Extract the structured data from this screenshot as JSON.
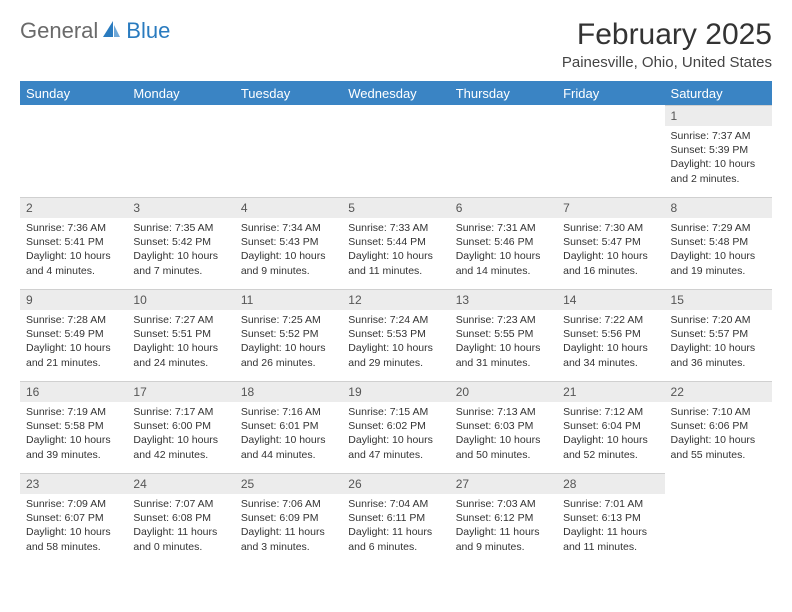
{
  "logo": {
    "text_general": "General",
    "text_blue": "Blue"
  },
  "title": "February 2025",
  "location": "Painesville, Ohio, United States",
  "colors": {
    "header_bg": "#3a84c4",
    "header_text": "#ffffff",
    "daynum_bg": "#ececec",
    "border": "#d0d0d0",
    "logo_blue": "#2a7bbf",
    "logo_gray": "#6a6a6a"
  },
  "day_headers": [
    "Sunday",
    "Monday",
    "Tuesday",
    "Wednesday",
    "Thursday",
    "Friday",
    "Saturday"
  ],
  "weeks": [
    [
      {
        "n": "",
        "empty": true
      },
      {
        "n": "",
        "empty": true
      },
      {
        "n": "",
        "empty": true
      },
      {
        "n": "",
        "empty": true
      },
      {
        "n": "",
        "empty": true
      },
      {
        "n": "",
        "empty": true
      },
      {
        "n": "1",
        "sunrise": "Sunrise: 7:37 AM",
        "sunset": "Sunset: 5:39 PM",
        "daylight1": "Daylight: 10 hours",
        "daylight2": "and 2 minutes."
      }
    ],
    [
      {
        "n": "2",
        "sunrise": "Sunrise: 7:36 AM",
        "sunset": "Sunset: 5:41 PM",
        "daylight1": "Daylight: 10 hours",
        "daylight2": "and 4 minutes."
      },
      {
        "n": "3",
        "sunrise": "Sunrise: 7:35 AM",
        "sunset": "Sunset: 5:42 PM",
        "daylight1": "Daylight: 10 hours",
        "daylight2": "and 7 minutes."
      },
      {
        "n": "4",
        "sunrise": "Sunrise: 7:34 AM",
        "sunset": "Sunset: 5:43 PM",
        "daylight1": "Daylight: 10 hours",
        "daylight2": "and 9 minutes."
      },
      {
        "n": "5",
        "sunrise": "Sunrise: 7:33 AM",
        "sunset": "Sunset: 5:44 PM",
        "daylight1": "Daylight: 10 hours",
        "daylight2": "and 11 minutes."
      },
      {
        "n": "6",
        "sunrise": "Sunrise: 7:31 AM",
        "sunset": "Sunset: 5:46 PM",
        "daylight1": "Daylight: 10 hours",
        "daylight2": "and 14 minutes."
      },
      {
        "n": "7",
        "sunrise": "Sunrise: 7:30 AM",
        "sunset": "Sunset: 5:47 PM",
        "daylight1": "Daylight: 10 hours",
        "daylight2": "and 16 minutes."
      },
      {
        "n": "8",
        "sunrise": "Sunrise: 7:29 AM",
        "sunset": "Sunset: 5:48 PM",
        "daylight1": "Daylight: 10 hours",
        "daylight2": "and 19 minutes."
      }
    ],
    [
      {
        "n": "9",
        "sunrise": "Sunrise: 7:28 AM",
        "sunset": "Sunset: 5:49 PM",
        "daylight1": "Daylight: 10 hours",
        "daylight2": "and 21 minutes."
      },
      {
        "n": "10",
        "sunrise": "Sunrise: 7:27 AM",
        "sunset": "Sunset: 5:51 PM",
        "daylight1": "Daylight: 10 hours",
        "daylight2": "and 24 minutes."
      },
      {
        "n": "11",
        "sunrise": "Sunrise: 7:25 AM",
        "sunset": "Sunset: 5:52 PM",
        "daylight1": "Daylight: 10 hours",
        "daylight2": "and 26 minutes."
      },
      {
        "n": "12",
        "sunrise": "Sunrise: 7:24 AM",
        "sunset": "Sunset: 5:53 PM",
        "daylight1": "Daylight: 10 hours",
        "daylight2": "and 29 minutes."
      },
      {
        "n": "13",
        "sunrise": "Sunrise: 7:23 AM",
        "sunset": "Sunset: 5:55 PM",
        "daylight1": "Daylight: 10 hours",
        "daylight2": "and 31 minutes."
      },
      {
        "n": "14",
        "sunrise": "Sunrise: 7:22 AM",
        "sunset": "Sunset: 5:56 PM",
        "daylight1": "Daylight: 10 hours",
        "daylight2": "and 34 minutes."
      },
      {
        "n": "15",
        "sunrise": "Sunrise: 7:20 AM",
        "sunset": "Sunset: 5:57 PM",
        "daylight1": "Daylight: 10 hours",
        "daylight2": "and 36 minutes."
      }
    ],
    [
      {
        "n": "16",
        "sunrise": "Sunrise: 7:19 AM",
        "sunset": "Sunset: 5:58 PM",
        "daylight1": "Daylight: 10 hours",
        "daylight2": "and 39 minutes."
      },
      {
        "n": "17",
        "sunrise": "Sunrise: 7:17 AM",
        "sunset": "Sunset: 6:00 PM",
        "daylight1": "Daylight: 10 hours",
        "daylight2": "and 42 minutes."
      },
      {
        "n": "18",
        "sunrise": "Sunrise: 7:16 AM",
        "sunset": "Sunset: 6:01 PM",
        "daylight1": "Daylight: 10 hours",
        "daylight2": "and 44 minutes."
      },
      {
        "n": "19",
        "sunrise": "Sunrise: 7:15 AM",
        "sunset": "Sunset: 6:02 PM",
        "daylight1": "Daylight: 10 hours",
        "daylight2": "and 47 minutes."
      },
      {
        "n": "20",
        "sunrise": "Sunrise: 7:13 AM",
        "sunset": "Sunset: 6:03 PM",
        "daylight1": "Daylight: 10 hours",
        "daylight2": "and 50 minutes."
      },
      {
        "n": "21",
        "sunrise": "Sunrise: 7:12 AM",
        "sunset": "Sunset: 6:04 PM",
        "daylight1": "Daylight: 10 hours",
        "daylight2": "and 52 minutes."
      },
      {
        "n": "22",
        "sunrise": "Sunrise: 7:10 AM",
        "sunset": "Sunset: 6:06 PM",
        "daylight1": "Daylight: 10 hours",
        "daylight2": "and 55 minutes."
      }
    ],
    [
      {
        "n": "23",
        "sunrise": "Sunrise: 7:09 AM",
        "sunset": "Sunset: 6:07 PM",
        "daylight1": "Daylight: 10 hours",
        "daylight2": "and 58 minutes."
      },
      {
        "n": "24",
        "sunrise": "Sunrise: 7:07 AM",
        "sunset": "Sunset: 6:08 PM",
        "daylight1": "Daylight: 11 hours",
        "daylight2": "and 0 minutes."
      },
      {
        "n": "25",
        "sunrise": "Sunrise: 7:06 AM",
        "sunset": "Sunset: 6:09 PM",
        "daylight1": "Daylight: 11 hours",
        "daylight2": "and 3 minutes."
      },
      {
        "n": "26",
        "sunrise": "Sunrise: 7:04 AM",
        "sunset": "Sunset: 6:11 PM",
        "daylight1": "Daylight: 11 hours",
        "daylight2": "and 6 minutes."
      },
      {
        "n": "27",
        "sunrise": "Sunrise: 7:03 AM",
        "sunset": "Sunset: 6:12 PM",
        "daylight1": "Daylight: 11 hours",
        "daylight2": "and 9 minutes."
      },
      {
        "n": "28",
        "sunrise": "Sunrise: 7:01 AM",
        "sunset": "Sunset: 6:13 PM",
        "daylight1": "Daylight: 11 hours",
        "daylight2": "and 11 minutes."
      },
      {
        "n": "",
        "empty": true
      }
    ]
  ]
}
